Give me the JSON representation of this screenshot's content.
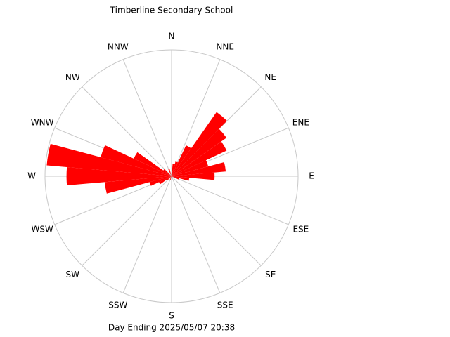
{
  "chart_data": {
    "type": "windrose",
    "title": "Timberline Secondary School",
    "subtitle": "Day Ending 2025/05/07 20:38",
    "directions": [
      "N",
      "NNE",
      "NE",
      "ENE",
      "E",
      "ESE",
      "SE",
      "SSE",
      "S",
      "SSW",
      "SW",
      "WSW",
      "W",
      "WNW",
      "NW",
      "NNW"
    ],
    "x": [
      10,
      20,
      30,
      40,
      50,
      60,
      70,
      80,
      90,
      100,
      110,
      200,
      230,
      240,
      250,
      260,
      270,
      280,
      290,
      300,
      310,
      340
    ],
    "values": [
      10,
      12,
      27,
      62,
      53,
      48,
      30,
      43,
      34,
      14,
      6,
      3,
      5,
      11,
      18,
      53,
      83,
      99,
      58,
      33,
      8,
      6
    ],
    "color": "#ff0000",
    "rlim": [
      0,
      100
    ],
    "bin_width": 10,
    "grid": true
  }
}
